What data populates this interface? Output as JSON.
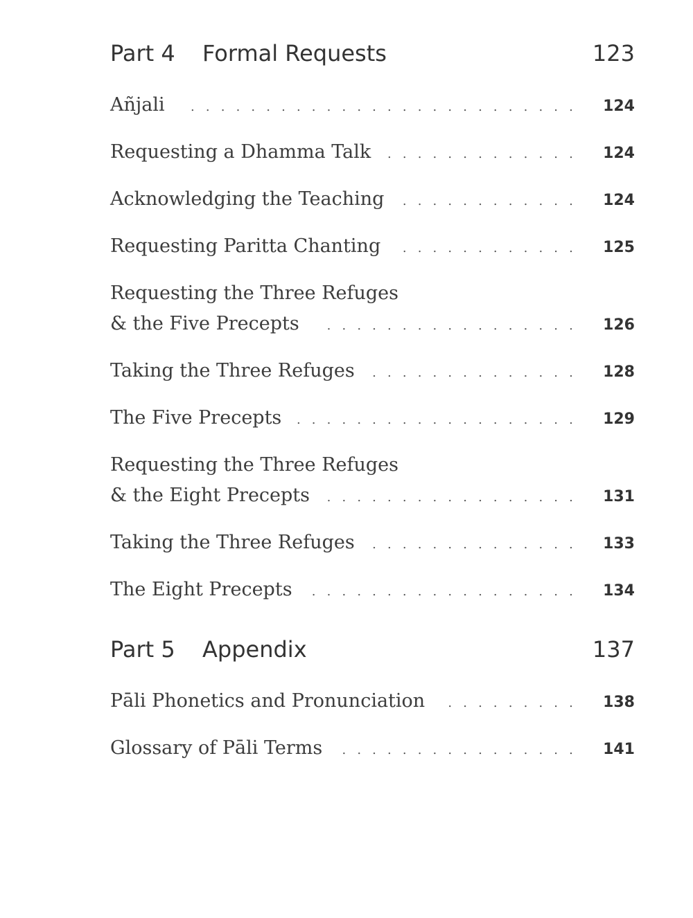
{
  "leader_text": ". . . . . . . . . . . . . . . . . . . . . . . . . . . . . . . . . . . . . . . . . . . . . . . . . . .",
  "parts": [
    {
      "label": "Part 4",
      "title": "Formal Requests",
      "page": "123",
      "entries": [
        {
          "lines": [
            "Añjali"
          ],
          "page": "124"
        },
        {
          "lines": [
            "Requesting a Dhamma Talk"
          ],
          "page": "124"
        },
        {
          "lines": [
            "Acknowledging the Teaching"
          ],
          "page": "124"
        },
        {
          "lines": [
            "Requesting Paritta Chanting"
          ],
          "page": "125"
        },
        {
          "lines": [
            "Requesting the Three Refuges",
            "& the Five Precepts"
          ],
          "page": "126"
        },
        {
          "lines": [
            "Taking the Three Refuges"
          ],
          "page": "128"
        },
        {
          "lines": [
            "The Five Precepts"
          ],
          "page": "129"
        },
        {
          "lines": [
            "Requesting the Three Refuges",
            "& the Eight Precepts"
          ],
          "page": "131"
        },
        {
          "lines": [
            "Taking the Three Refuges"
          ],
          "page": "133"
        },
        {
          "lines": [
            "The Eight Precepts"
          ],
          "page": "134"
        }
      ]
    },
    {
      "label": "Part 5",
      "title": "Appendix",
      "page": "137",
      "entries": [
        {
          "lines": [
            "Pāli Phonetics and Pronunciation"
          ],
          "page": "138"
        },
        {
          "lines": [
            "Glossary of Pāli Terms"
          ],
          "page": "141"
        }
      ]
    }
  ]
}
